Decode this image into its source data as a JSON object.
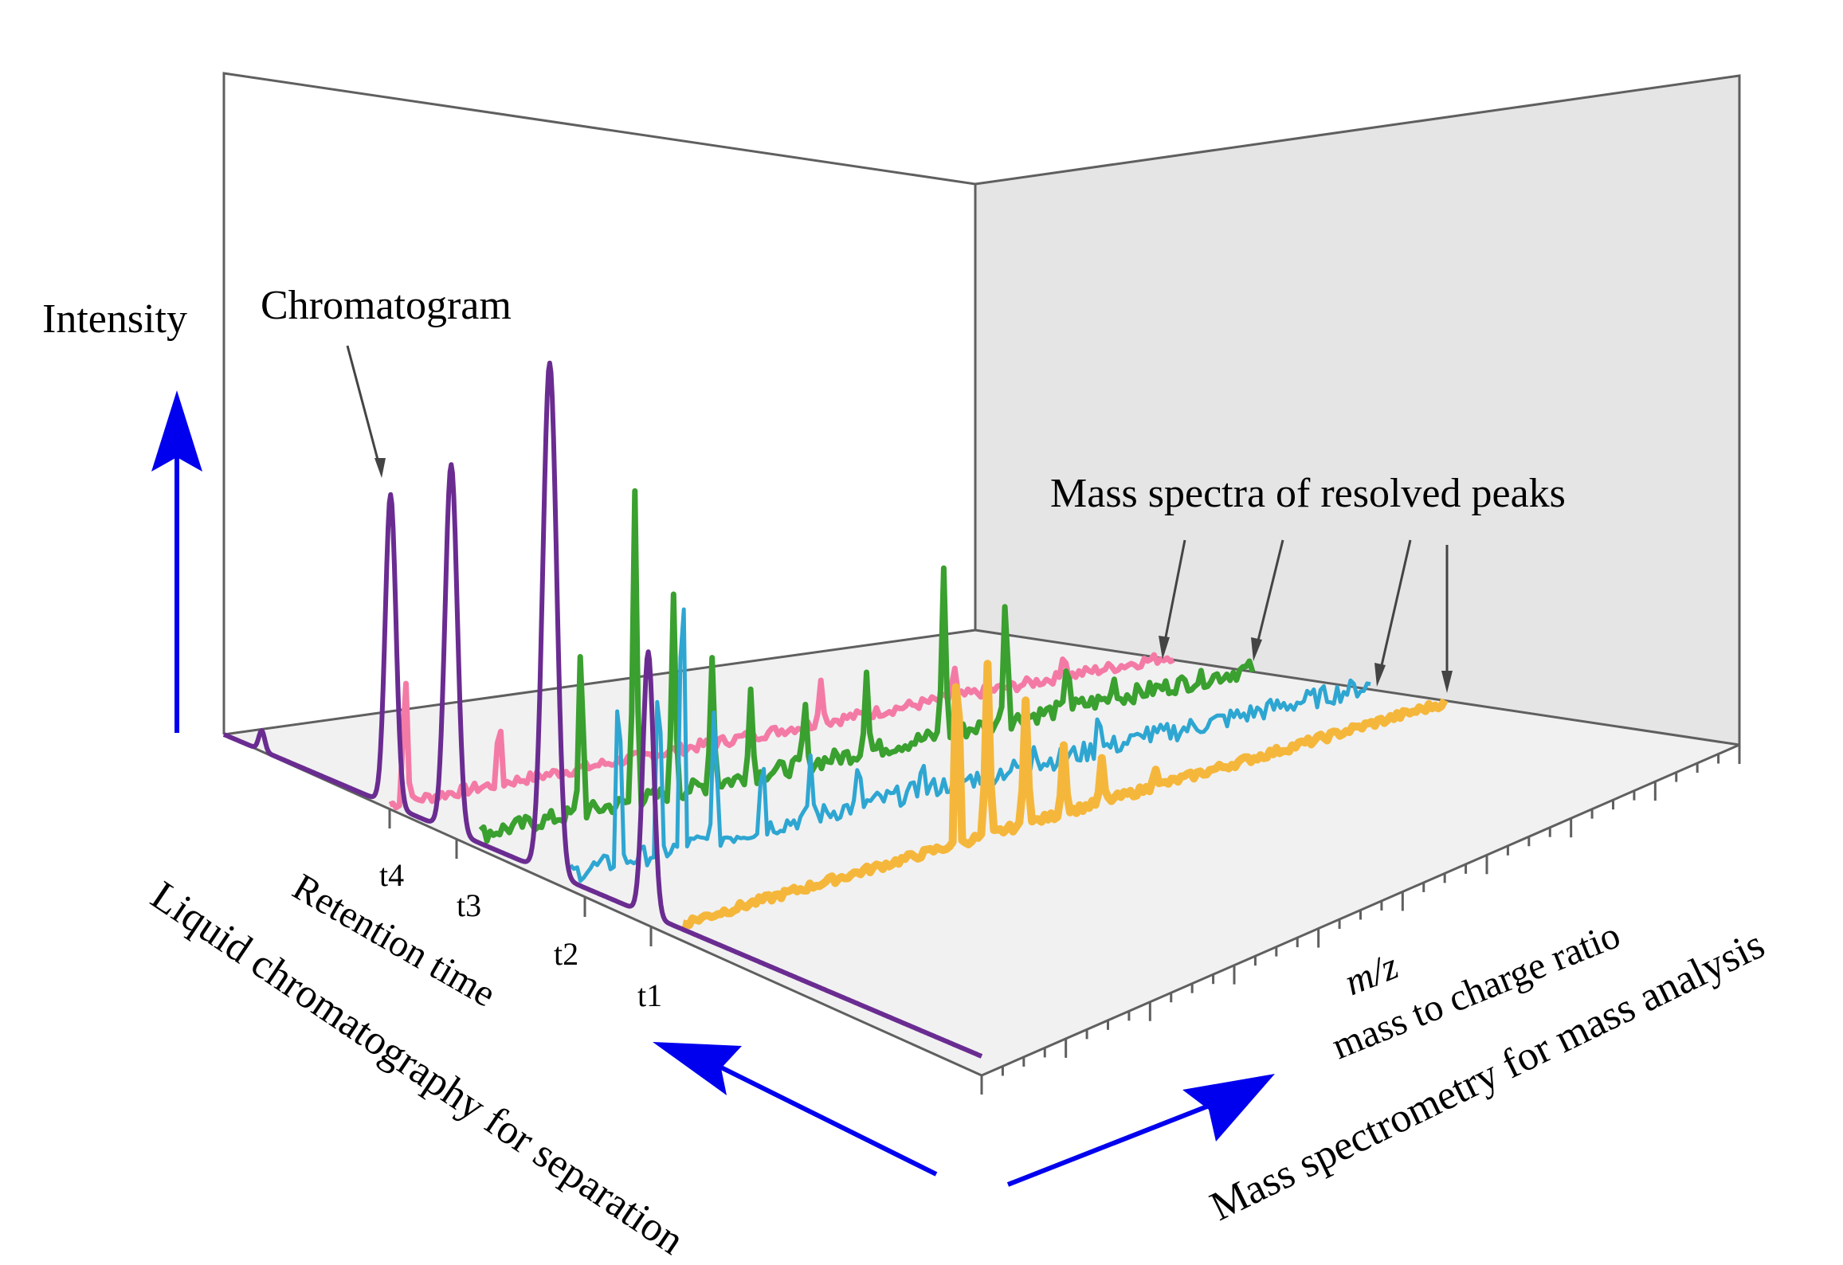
{
  "labels": {
    "intensity": "Intensity",
    "chromatogram": "Chromatogram",
    "mass_spectra": "Mass spectra of resolved peaks",
    "retention_time": "Retention time",
    "lc_axis": "Liquid chromatography for separation",
    "mz": "m/z",
    "mass_to_charge": "mass to charge ratio",
    "ms_axis": "Mass spectrometry for mass analysis",
    "t1": "t1",
    "t2": "t2",
    "t3": "t3",
    "t4": "t4"
  },
  "colors": {
    "chromatogram": "#6a2c91",
    "spectrum_t4": "#f47aa6",
    "spectrum_t3": "#3aa02f",
    "spectrum_t2": "#2ea6d2",
    "spectrum_t1": "#f5b73b",
    "arrows": "#0000ee",
    "back_wall": "#e5e5e5",
    "floor": "#f2f2f2"
  }
}
